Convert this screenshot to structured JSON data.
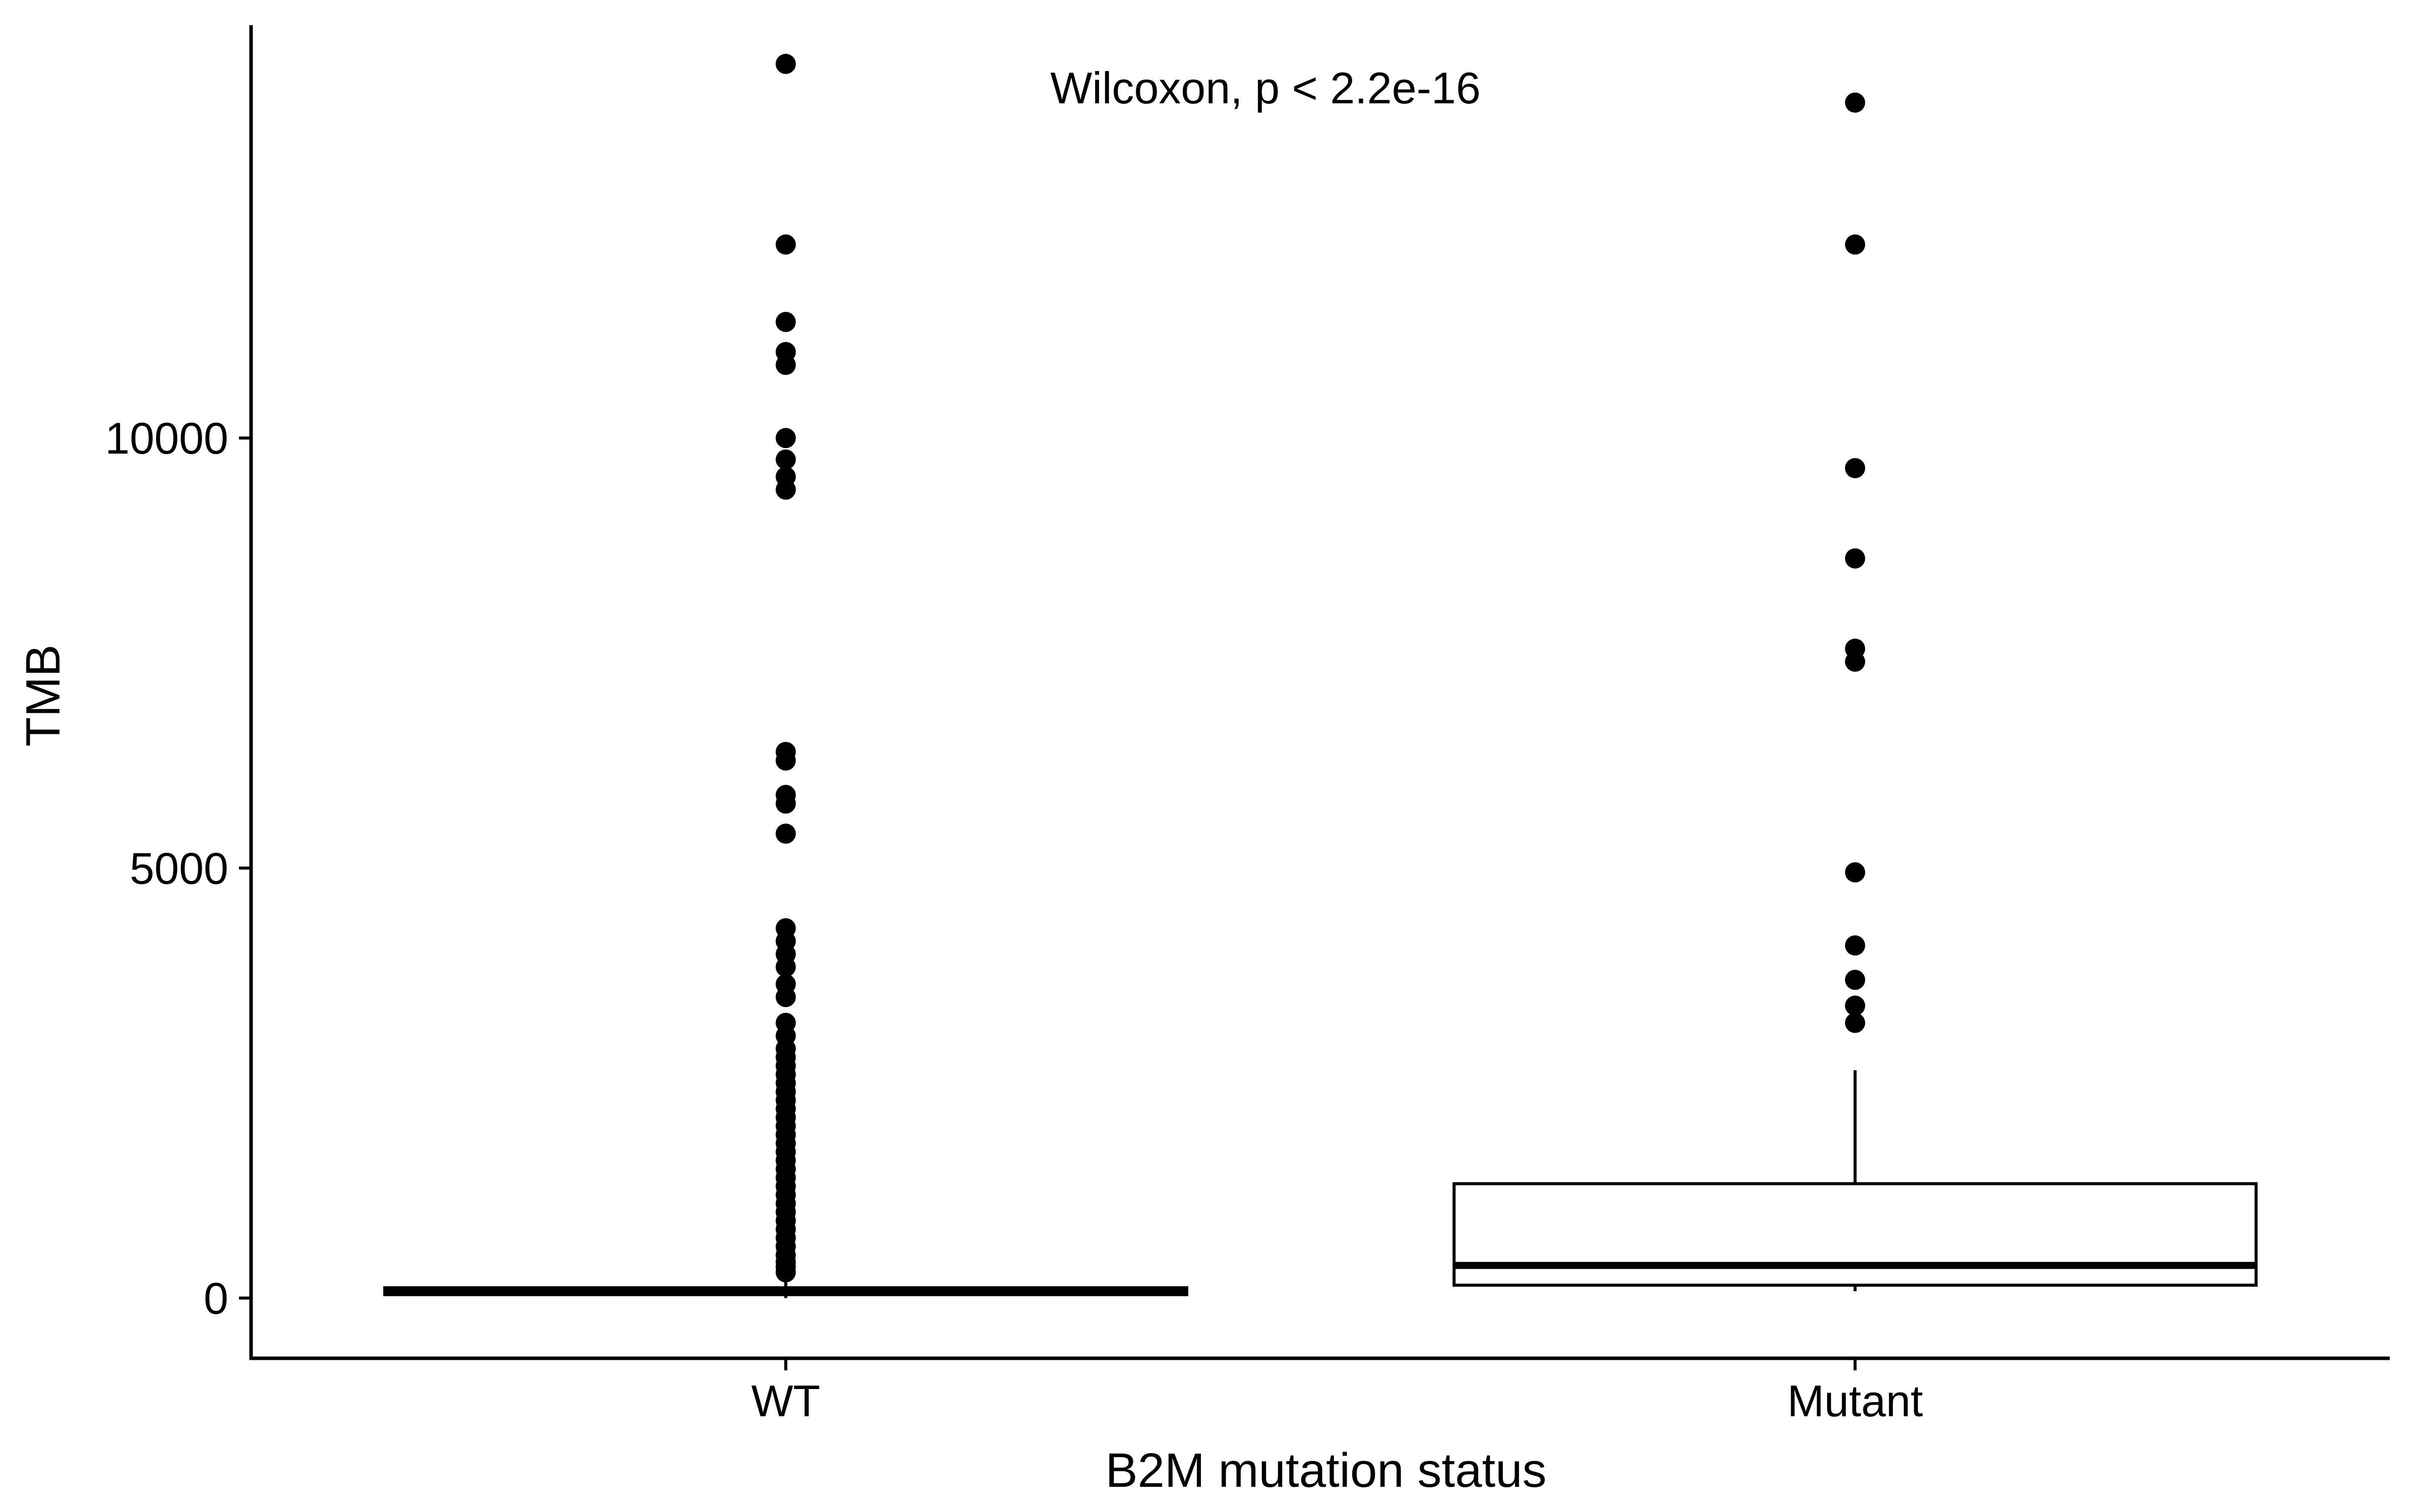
{
  "chart_data": {
    "type": "boxplot",
    "title": "",
    "xlabel": "B2M mutation status",
    "ylabel": "TMB",
    "ylim": [
      -700,
      14800
    ],
    "yticks": [
      0,
      5000,
      10000
    ],
    "categories": [
      "WT",
      "Mutant"
    ],
    "annotation": "Wilcoxon, p < 2.2e-16",
    "grid": false,
    "legend": "none",
    "colors": {
      "box_fill": "#ffffff",
      "line": "#000000",
      "outlier": "#000000"
    },
    "boxes": [
      {
        "category": "WT",
        "min": 0,
        "q1": 40,
        "median": 80,
        "q3": 120,
        "max": 260,
        "outliers": [
          14350,
          12250,
          11350,
          11000,
          10850,
          10000,
          9750,
          9550,
          9400,
          6350,
          6250,
          5850,
          5750,
          5400,
          4300,
          4150,
          4000,
          3850,
          3650,
          3500,
          3200,
          3050,
          2900,
          2800,
          2700,
          2600,
          2500,
          2400,
          2300,
          2200,
          2100,
          2000,
          1900,
          1800,
          1700,
          1600,
          1500,
          1400,
          1300,
          1200,
          1100,
          1000,
          900,
          800,
          700,
          600,
          500,
          420,
          360,
          300
        ]
      },
      {
        "category": "Mutant",
        "min": 80,
        "q1": 150,
        "median": 380,
        "q3": 1330,
        "max": 2650,
        "outliers": [
          13900,
          12250,
          9650,
          8600,
          7550,
          7400,
          4950,
          4100,
          3700,
          3400,
          3200
        ]
      }
    ]
  }
}
